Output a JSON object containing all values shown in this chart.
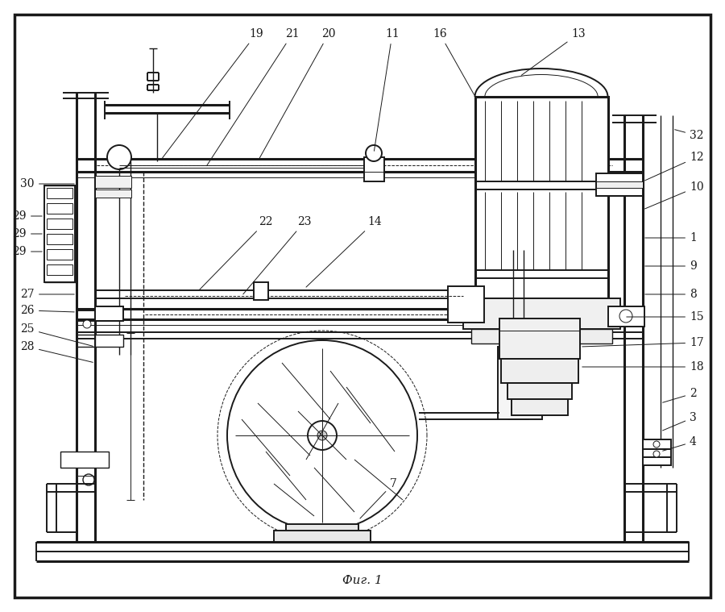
{
  "title": "Фиг. 1",
  "bg_color": "#ffffff",
  "line_color": "#1a1a1a",
  "fig_width": 9.0,
  "fig_height": 7.59,
  "dpi": 100
}
